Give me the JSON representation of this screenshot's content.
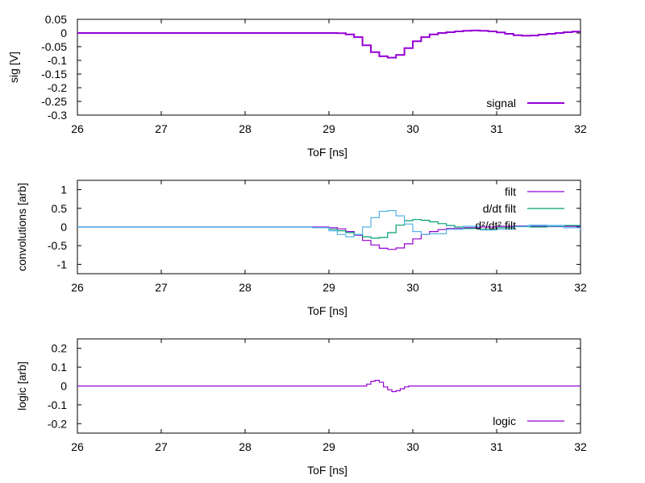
{
  "chart_data": [
    {
      "type": "line",
      "style": "step",
      "xlabel": "ToF [ns]",
      "ylabel": "sig [V]",
      "xlim": [
        26,
        32
      ],
      "ylim": [
        -0.3,
        0.05
      ],
      "xticks": [
        "26",
        "27",
        "28",
        "29",
        "30",
        "31",
        "32"
      ],
      "yticks": [
        "0.05",
        "0",
        "-0.05",
        "-0.1",
        "-0.15",
        "-0.2",
        "-0.25",
        "-0.3"
      ],
      "grid": false,
      "legend_position": "bottom-right",
      "series": [
        {
          "name": "signal",
          "color": "#9400d3",
          "x": [
            26.0,
            26.4,
            26.8,
            27.2,
            27.6,
            28.0,
            28.4,
            28.8,
            29.0,
            29.1,
            29.2,
            29.3,
            29.4,
            29.5,
            29.6,
            29.7,
            29.8,
            29.9,
            30.0,
            30.1,
            30.2,
            30.3,
            30.4,
            30.5,
            30.6,
            30.7,
            30.8,
            30.9,
            31.0,
            31.1,
            31.2,
            31.3,
            31.4,
            31.5,
            31.6,
            31.7,
            31.8,
            31.9,
            32.0
          ],
          "y": [
            0.0,
            0.0,
            0.0,
            0.0,
            0.0,
            0.0,
            0.0,
            0.0,
            0.0,
            -0.001,
            -0.005,
            -0.015,
            -0.045,
            -0.07,
            -0.085,
            -0.09,
            -0.08,
            -0.055,
            -0.03,
            -0.015,
            -0.005,
            0.0,
            0.003,
            0.006,
            0.008,
            0.009,
            0.008,
            0.006,
            0.002,
            -0.003,
            -0.008,
            -0.01,
            -0.009,
            -0.006,
            -0.003,
            0.0,
            0.003,
            0.005,
            0.006
          ]
        }
      ]
    },
    {
      "type": "line",
      "style": "step",
      "xlabel": "ToF [ns]",
      "ylabel": "convolutions [arb]",
      "xlim": [
        26,
        32
      ],
      "ylim": [
        -1.25,
        1.25
      ],
      "xticks": [
        "26",
        "27",
        "28",
        "29",
        "30",
        "31",
        "32"
      ],
      "yticks": [
        "1",
        "0.5",
        "0",
        "-0.5",
        "-1"
      ],
      "grid": false,
      "legend_position": "top-right",
      "series": [
        {
          "name": "filt",
          "color": "#9400d3",
          "x": [
            26.0,
            26.5,
            27.0,
            27.5,
            28.0,
            28.5,
            28.8,
            29.0,
            29.1,
            29.2,
            29.3,
            29.4,
            29.5,
            29.6,
            29.7,
            29.8,
            29.9,
            30.0,
            30.1,
            30.2,
            30.3,
            30.4,
            30.6,
            30.8,
            31.0,
            31.2,
            31.4,
            31.6,
            31.8,
            32.0
          ],
          "y": [
            0.0,
            0.0,
            0.0,
            0.0,
            0.0,
            0.0,
            0.0,
            -0.02,
            -0.05,
            -0.12,
            -0.22,
            -0.36,
            -0.48,
            -0.57,
            -0.6,
            -0.56,
            -0.45,
            -0.32,
            -0.2,
            -0.12,
            -0.07,
            -0.04,
            -0.02,
            0.0,
            0.02,
            0.03,
            0.02,
            0.01,
            0.02,
            0.03
          ]
        },
        {
          "name": "d/dt filt",
          "color": "#009e73",
          "x": [
            26.0,
            26.5,
            27.0,
            27.5,
            28.0,
            28.5,
            28.8,
            29.0,
            29.1,
            29.2,
            29.3,
            29.4,
            29.5,
            29.6,
            29.7,
            29.8,
            29.9,
            30.0,
            30.1,
            30.2,
            30.3,
            30.4,
            30.5,
            30.6,
            30.8,
            31.0,
            31.2,
            31.4,
            31.6,
            31.8,
            32.0
          ],
          "y": [
            0.0,
            0.0,
            0.0,
            0.0,
            0.0,
            0.0,
            -0.02,
            -0.06,
            -0.1,
            -0.15,
            -0.2,
            -0.26,
            -0.3,
            -0.28,
            -0.15,
            0.05,
            0.17,
            0.2,
            0.18,
            0.14,
            0.09,
            0.04,
            0.0,
            -0.04,
            -0.06,
            -0.02,
            0.01,
            0.0,
            0.02,
            0.04,
            0.02
          ]
        },
        {
          "name": "d²/dt² filt",
          "color": "#56b4e9",
          "x": [
            26.0,
            26.5,
            27.0,
            27.5,
            28.0,
            28.5,
            28.8,
            29.0,
            29.1,
            29.2,
            29.3,
            29.4,
            29.5,
            29.6,
            29.7,
            29.8,
            29.9,
            30.0,
            30.1,
            30.2,
            30.4,
            30.6,
            30.8,
            31.0,
            31.2,
            31.4,
            31.6,
            31.8,
            32.0
          ],
          "y": [
            0.0,
            0.0,
            0.0,
            0.0,
            0.0,
            0.0,
            -0.02,
            -0.1,
            -0.2,
            -0.26,
            -0.2,
            0.0,
            0.25,
            0.42,
            0.44,
            0.3,
            0.08,
            -0.12,
            -0.2,
            -0.18,
            -0.06,
            0.02,
            -0.08,
            -0.06,
            0.02,
            0.05,
            0.03,
            -0.02,
            -0.06
          ]
        }
      ]
    },
    {
      "type": "line",
      "style": "step",
      "xlabel": "ToF [ns]",
      "ylabel": "logic [arb]",
      "xlim": [
        26,
        32
      ],
      "ylim": [
        -0.25,
        0.25
      ],
      "xticks": [
        "26",
        "27",
        "28",
        "29",
        "30",
        "31",
        "32"
      ],
      "yticks": [
        "0.2",
        "0.1",
        "0",
        "-0.1",
        "-0.2"
      ],
      "grid": false,
      "legend_position": "bottom-right",
      "series": [
        {
          "name": "logic",
          "color": "#9400d3",
          "x": [
            26.0,
            26.5,
            27.0,
            27.5,
            28.0,
            28.5,
            29.0,
            29.3,
            29.4,
            29.45,
            29.5,
            29.55,
            29.6,
            29.65,
            29.7,
            29.75,
            29.8,
            29.85,
            29.9,
            29.95,
            30.0,
            30.5,
            31.0,
            31.5,
            32.0
          ],
          "y": [
            0.0,
            0.0,
            0.0,
            0.0,
            0.0,
            0.0,
            0.0,
            0.0,
            0.0,
            0.01,
            0.025,
            0.03,
            0.02,
            -0.005,
            -0.02,
            -0.03,
            -0.025,
            -0.015,
            -0.005,
            0.0,
            0.0,
            0.0,
            0.0,
            0.0,
            0.0
          ]
        }
      ]
    }
  ]
}
